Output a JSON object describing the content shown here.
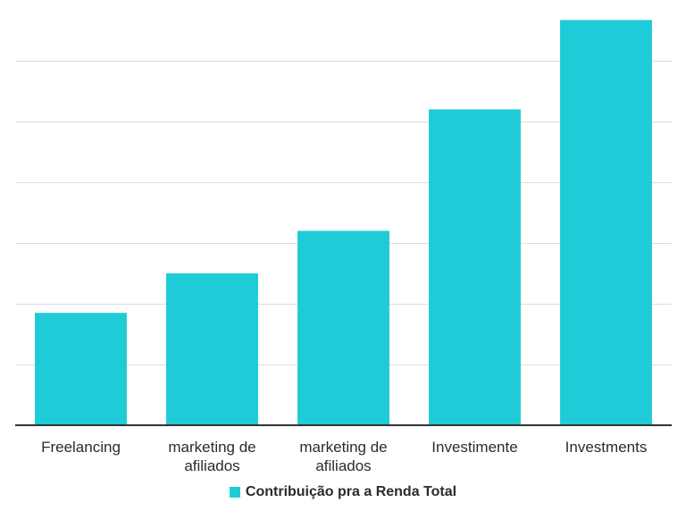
{
  "chart_data": {
    "type": "bar",
    "categories": [
      [
        "Freelancing"
      ],
      [
        "marketing de",
        "afiliados"
      ],
      [
        "marketing de",
        "afiliados"
      ],
      [
        "Investimente"
      ],
      [
        "Investments"
      ]
    ],
    "series": [
      {
        "name": "Contribuição pra a Renda Total",
        "color": "#1ecbd6",
        "values": [
          1.85,
          2.5,
          3.2,
          5.2,
          6.67
        ]
      }
    ],
    "ylim": [
      0,
      7
    ],
    "yticks": [
      0,
      1,
      2,
      3,
      4,
      5,
      6
    ],
    "ytick_labels_shown": false,
    "grid": true,
    "legend_position": "bottom"
  }
}
